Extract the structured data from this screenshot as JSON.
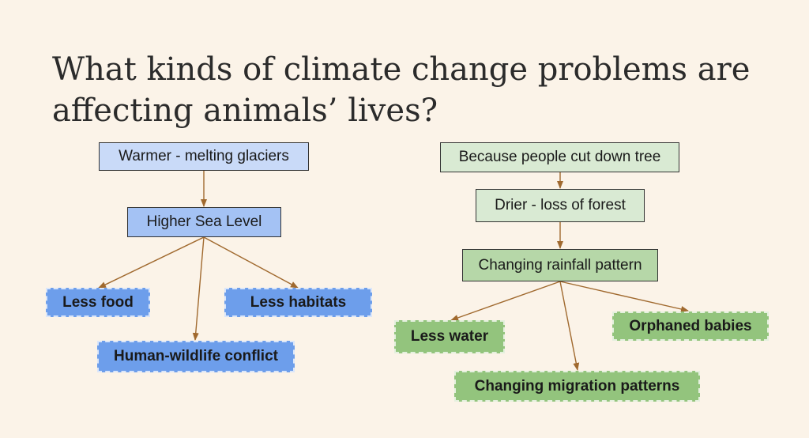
{
  "title": "What kinds of climate change problems are affecting animals’ lives?",
  "colors": {
    "background": "#fbf3e8",
    "blue_light": "#c9daf8",
    "blue_mid": "#a4c2f4",
    "blue_leaf": "#6d9eeb",
    "green_light": "#d9ead3",
    "green_mid": "#b6d7a8",
    "green_leaf": "#93c47d",
    "arrow": "#a0692e"
  },
  "left_branch": {
    "root": "Warmer - melting glaciers",
    "middle": "Higher Sea Level",
    "effects": [
      "Less food",
      "Less habitats",
      "Human-wildlife conflict"
    ]
  },
  "right_branch": {
    "root": "Because people cut down tree",
    "second": "Drier - loss of forest",
    "middle": "Changing rainfall pattern",
    "effects": [
      "Less water",
      "Orphaned babies",
      "Changing migration patterns"
    ]
  }
}
